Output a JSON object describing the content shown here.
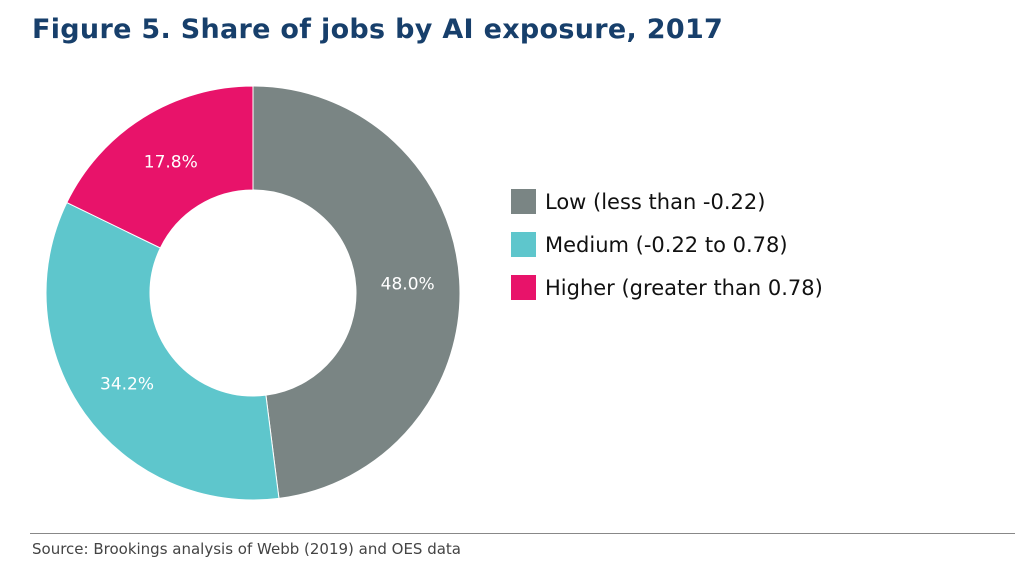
{
  "chart_data": {
    "type": "pie",
    "donut": true,
    "title": "Figure 5. Share of jobs by AI exposure, 2017",
    "categories": [
      "Low (less than -0.22)",
      "Medium (-0.22 to 0.78)",
      "Higher (greater than 0.78)"
    ],
    "values": [
      48.0,
      34.2,
      17.8
    ],
    "data_labels": [
      "48.0%",
      "34.2%",
      "17.8%"
    ],
    "colors": [
      "#7a8584",
      "#5ec6cc",
      "#e8136a"
    ],
    "start": "top",
    "direction": "clockwise",
    "legend_position": "right",
    "source": "Source: Brookings analysis of Webb (2019) and OES data"
  },
  "colors": {
    "title": "#173f6b"
  }
}
